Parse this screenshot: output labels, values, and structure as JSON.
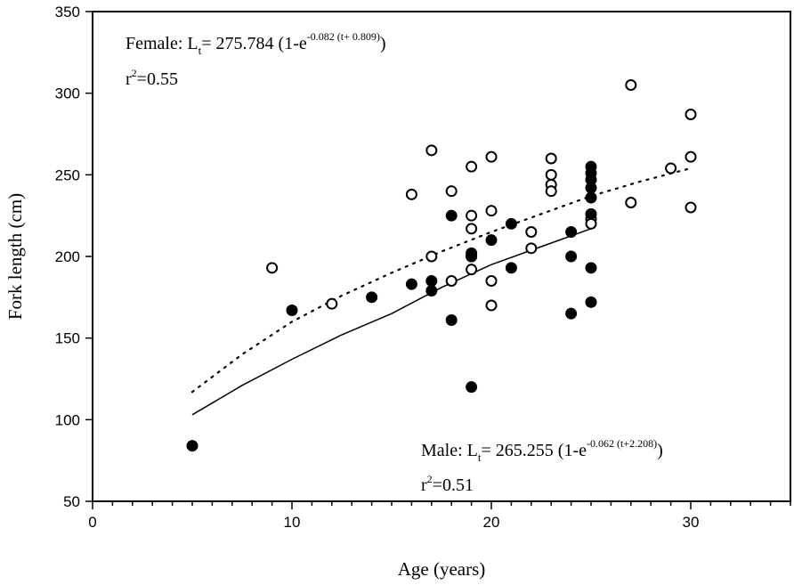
{
  "chart_data": {
    "type": "scatter",
    "xlabel": "Age (years)",
    "ylabel": "Fork length (cm)",
    "xlim": [
      0,
      35
    ],
    "ylim": [
      50,
      350
    ],
    "x_ticks": [
      0,
      10,
      20,
      30
    ],
    "y_ticks": [
      50,
      100,
      150,
      200,
      250,
      300,
      350
    ],
    "grid": false,
    "series": [
      {
        "marker": "open-circle",
        "color": "#000000",
        "points": [
          [
            9,
            193
          ],
          [
            12,
            171
          ],
          [
            16,
            238
          ],
          [
            17,
            265
          ],
          [
            17,
            200
          ],
          [
            18,
            240
          ],
          [
            18,
            185
          ],
          [
            19,
            255
          ],
          [
            19,
            225
          ],
          [
            19,
            217
          ],
          [
            19,
            200
          ],
          [
            19,
            192
          ],
          [
            20,
            261
          ],
          [
            20,
            228
          ],
          [
            20,
            185
          ],
          [
            20,
            170
          ],
          [
            22,
            215
          ],
          [
            22,
            205
          ],
          [
            23,
            260
          ],
          [
            23,
            250
          ],
          [
            23,
            244
          ],
          [
            23,
            240
          ],
          [
            25,
            223
          ],
          [
            25,
            220
          ],
          [
            27,
            305
          ],
          [
            27,
            233
          ],
          [
            29,
            254
          ],
          [
            30,
            287
          ],
          [
            30,
            261
          ],
          [
            30,
            230
          ]
        ],
        "fit_style": "dotted",
        "fit_curve": [
          [
            5,
            117
          ],
          [
            7.5,
            140
          ],
          [
            10,
            160
          ],
          [
            12.5,
            176
          ],
          [
            15,
            190
          ],
          [
            17.5,
            203
          ],
          [
            20,
            215
          ],
          [
            22.5,
            226
          ],
          [
            25,
            237
          ],
          [
            27.5,
            246
          ],
          [
            30,
            254
          ]
        ]
      },
      {
        "marker": "filled-circle",
        "color": "#000000",
        "points": [
          [
            5,
            84
          ],
          [
            10,
            167
          ],
          [
            14,
            175
          ],
          [
            16,
            183
          ],
          [
            17,
            185
          ],
          [
            17,
            179
          ],
          [
            18,
            225
          ],
          [
            18,
            161
          ],
          [
            19,
            202
          ],
          [
            19,
            200
          ],
          [
            19,
            120
          ],
          [
            20,
            210
          ],
          [
            21,
            220
          ],
          [
            21,
            193
          ],
          [
            24,
            215
          ],
          [
            24,
            200
          ],
          [
            24,
            165
          ],
          [
            25,
            255
          ],
          [
            25,
            251
          ],
          [
            25,
            247
          ],
          [
            25,
            242
          ],
          [
            25,
            236
          ],
          [
            25,
            226
          ],
          [
            25,
            193
          ],
          [
            25,
            172
          ]
        ],
        "fit_style": "solid",
        "fit_curve": [
          [
            5,
            103
          ],
          [
            7.5,
            121
          ],
          [
            10,
            137
          ],
          [
            12.5,
            152
          ],
          [
            15,
            165
          ],
          [
            17.5,
            181
          ],
          [
            20,
            195
          ],
          [
            22.5,
            206
          ],
          [
            25,
            217
          ]
        ]
      }
    ],
    "annotations": {
      "female": {
        "label": "Female: L",
        "sub": "t",
        "eq": "= 275.784 (1-e",
        "exp": "-0.082 (t+ 0.809)",
        "close": ")",
        "r2_r": "r",
        "r2_exp": "2",
        "r2_val": "=0.55"
      },
      "male": {
        "label": "Male: L",
        "sub": "t",
        "eq": "= 265.255 (1-e",
        "exp": "-0.062 (t+2.208)",
        "close": ")",
        "r2_r": "r",
        "r2_exp": "2",
        "r2_val": "=0.51"
      }
    }
  }
}
